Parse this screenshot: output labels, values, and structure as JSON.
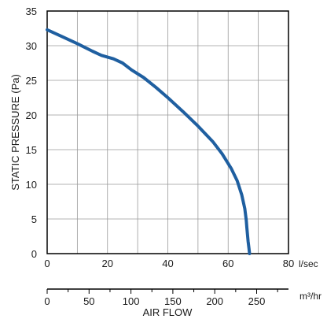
{
  "chart_data": {
    "type": "line",
    "xlabel": "AIR FLOW",
    "ylabel": "STATIC PRESSURE (Pa)",
    "x_unit": "l/sec",
    "x2_unit": "m³/hr",
    "xlim": [
      0,
      80
    ],
    "ylim": [
      0,
      35
    ],
    "x2lim": [
      0,
      288
    ],
    "grid": true,
    "x_ticks": [
      "0",
      "20",
      "40",
      "60",
      "80"
    ],
    "y_ticks": [
      "0",
      "5",
      "10",
      "15",
      "20",
      "25",
      "30",
      "35"
    ],
    "x2_ticks": [
      "0",
      "50",
      "100",
      "150",
      "200",
      "250"
    ],
    "line_color": "#1f5fa0",
    "series": [
      {
        "x": [
          0,
          5,
          10,
          15,
          18,
          22,
          25,
          28,
          32,
          36,
          40,
          45,
          50,
          55,
          58,
          61,
          63,
          64.5,
          65.5,
          66,
          66.2,
          66.4,
          66.6,
          66.9,
          67.1
        ],
        "y": [
          32.3,
          31.3,
          30.3,
          29.2,
          28.6,
          28.1,
          27.5,
          26.5,
          25.4,
          24.0,
          22.5,
          20.5,
          18.4,
          16.1,
          14.4,
          12.3,
          10.5,
          8.5,
          6.5,
          4.8,
          3.8,
          2.8,
          1.8,
          0.8,
          0
        ]
      }
    ]
  }
}
